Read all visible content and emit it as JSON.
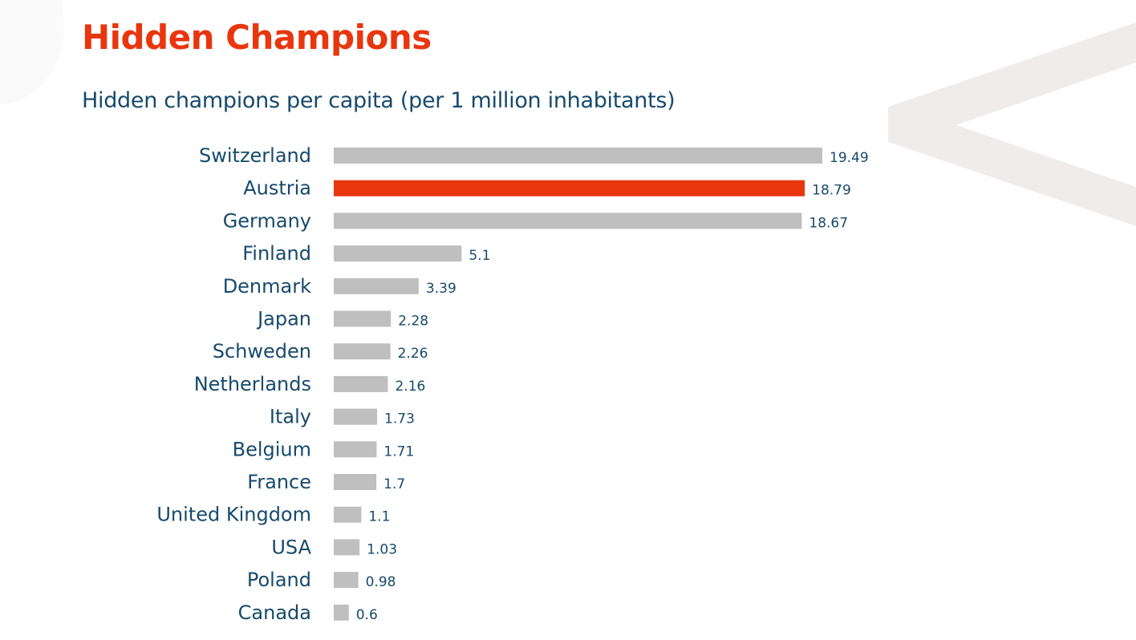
{
  "title": "Hidden Champions",
  "subtitle": "Hidden champions per capita (per 1 million inhabitants)",
  "colors": {
    "title": "#e8360e",
    "text": "#164a6c",
    "bar": "#bfbfbf",
    "highlight": "#e8360e",
    "decoration": "#f1ecec"
  },
  "chart_data": {
    "type": "bar",
    "orientation": "horizontal",
    "categories": [
      "Switzerland",
      "Austria",
      "Germany",
      "Finland",
      "Denmark",
      "Japan",
      "Schweden",
      "Netherlands",
      "Italy",
      "Belgium",
      "France",
      "United Kingdom",
      "USA",
      "Poland",
      "Canada"
    ],
    "values": [
      19.49,
      18.79,
      18.67,
      5.1,
      3.39,
      2.28,
      2.26,
      2.16,
      1.73,
      1.71,
      1.7,
      1.1,
      1.03,
      0.98,
      0.6
    ],
    "value_labels": [
      "19.49",
      "18.79",
      "18.67",
      "5.1",
      "3.39",
      "2.28",
      "2.26",
      "2.16",
      "1.73",
      "1.71",
      "1.7",
      "1.1",
      "1.03",
      "0.98",
      "0.6"
    ],
    "highlight": "Austria",
    "grid": false,
    "legend": "none",
    "axes_visible": false
  }
}
